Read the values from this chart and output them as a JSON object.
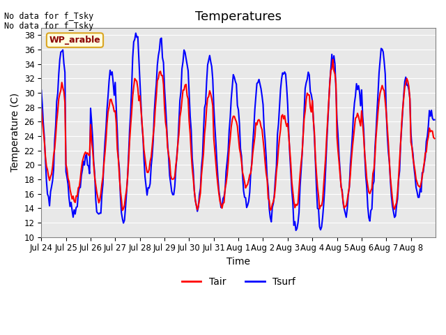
{
  "title": "Temperatures",
  "xlabel": "Time",
  "ylabel": "Temperature (C)",
  "ylim": [
    10,
    39
  ],
  "yticks": [
    10,
    12,
    14,
    16,
    18,
    20,
    22,
    24,
    26,
    28,
    30,
    32,
    34,
    36,
    38
  ],
  "background_color": "#e8e8e8",
  "figure_color": "#ffffff",
  "line_color_tair": "#ff0000",
  "line_color_tsurf": "#0000ff",
  "line_width": 1.5,
  "title_fontsize": 13,
  "label_fontsize": 10,
  "tick_fontsize": 8.5,
  "text_no_data_1": "No data for f_Tsky",
  "text_no_data_2": "No data for f_Tsky",
  "annotation_box": "WP_arable",
  "legend_labels": [
    "Tair",
    "Tsurf"
  ],
  "x_tick_labels": [
    "Jul 24",
    "Jul 25",
    "Jul 26",
    "Jul 27",
    "Jul 28",
    "Jul 29",
    "Jul 30",
    "Jul 31",
    "Aug 1",
    "Aug 2",
    "Aug 3",
    "Aug 4",
    "Aug 5",
    "Aug 6",
    "Aug 7",
    "Aug 8"
  ],
  "n_days": 16,
  "hours_per_day": 24,
  "day_peaks_tair": [
    31,
    22,
    29,
    32,
    33,
    31,
    30,
    27,
    26,
    27,
    30,
    34,
    27,
    31,
    32,
    25
  ],
  "day_troughs_tair": [
    18,
    15,
    15,
    14,
    19,
    18,
    14,
    14,
    17,
    14,
    14,
    14,
    14,
    16,
    14,
    17
  ],
  "day_peaks_tsurf": [
    36,
    21,
    33,
    38,
    37,
    36,
    35,
    32,
    32,
    33,
    33,
    35,
    31,
    36,
    32,
    27
  ],
  "day_troughs_tsurf": [
    15,
    13,
    13,
    12,
    16,
    16,
    14,
    14,
    14,
    13,
    11,
    11,
    13,
    13,
    13,
    16
  ]
}
